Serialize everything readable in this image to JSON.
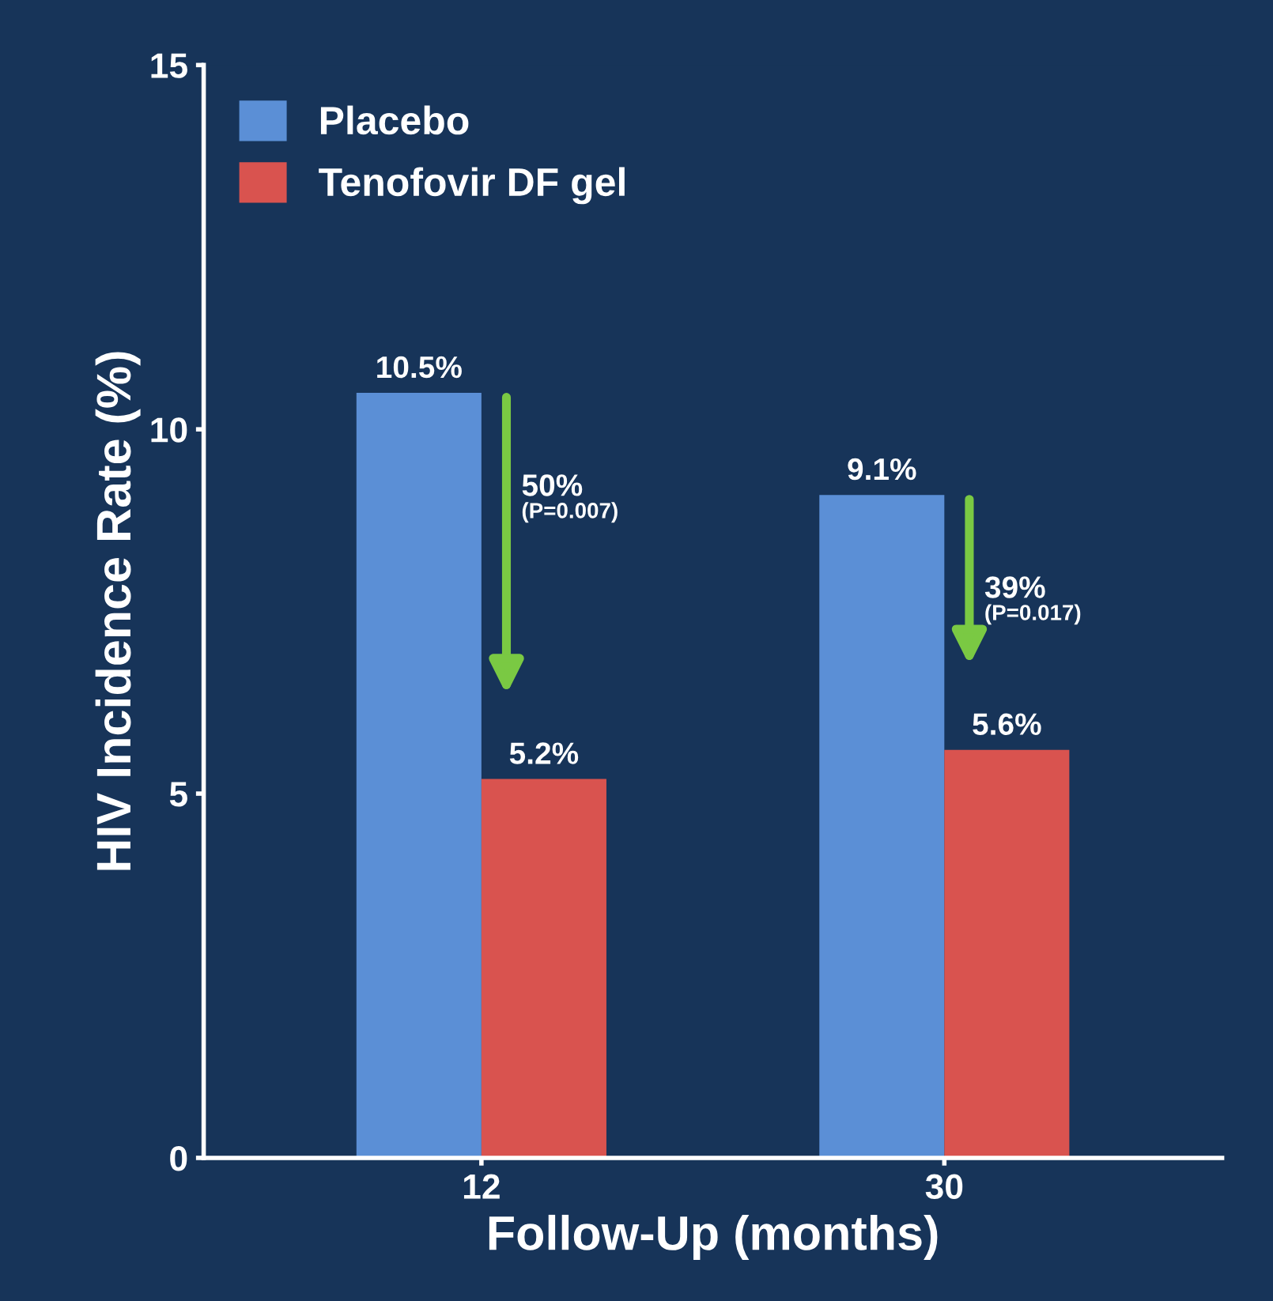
{
  "chart_data": {
    "type": "bar",
    "xlabel": "Follow-Up (months)",
    "ylabel": "HIV Incidence Rate (%)",
    "categories": [
      "12",
      "30"
    ],
    "series": [
      {
        "name": "Placebo",
        "color": "#5b8fd6",
        "values": [
          10.5,
          9.1
        ],
        "value_labels": [
          "10.5%",
          "9.1%"
        ]
      },
      {
        "name": "Tenofovir DF gel",
        "color": "#d9534f",
        "values": [
          5.2,
          5.6
        ],
        "value_labels": [
          "5.2%",
          "5.6%"
        ]
      }
    ],
    "ylim": [
      0,
      15
    ],
    "yticks": [
      0,
      5,
      10,
      15
    ],
    "grid": false,
    "legend": "top left",
    "annotations": [
      {
        "text": "50%\n(P=0.007)",
        "x": "12",
        "y": 9.0
      },
      {
        "text": "39%\n(P=0.017)",
        "x": "30",
        "y": 7.6
      }
    ]
  }
}
